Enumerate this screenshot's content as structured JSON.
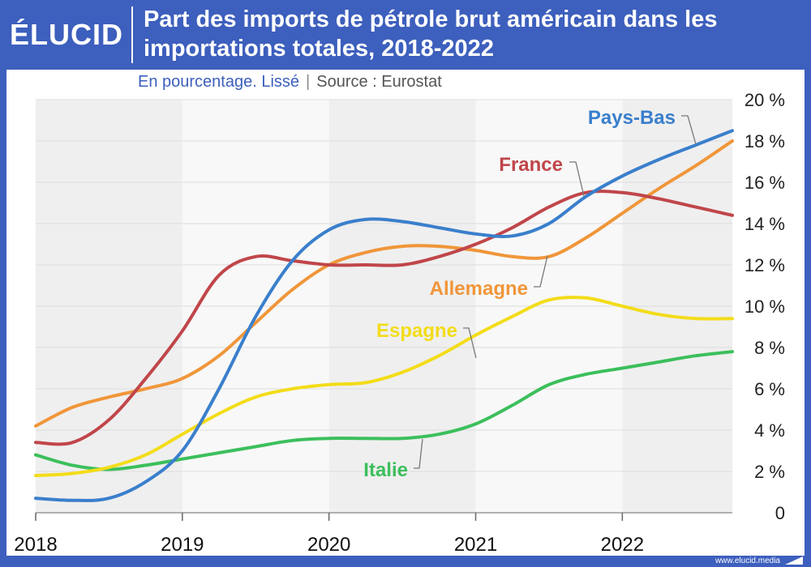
{
  "header": {
    "logo": "ÉLUCID",
    "title": "Part des imports de pétrole brut américain dans les importations totales, 2018-2022",
    "subtitle": "En pourcentage. Lissé",
    "separator": "|",
    "source": "Source : Eurostat"
  },
  "footer": {
    "url": "www.elucid.media"
  },
  "chart_data": {
    "type": "line",
    "title": "Part des imports de pétrole brut américain dans les importations totales, 2018-2022",
    "subtitle": "En pourcentage. Lissé",
    "xlabel": "",
    "ylabel": "",
    "xlim": [
      2018,
      2022.75
    ],
    "ylim": [
      0,
      20
    ],
    "x_ticks": [
      "2018",
      "2019",
      "2020",
      "2021",
      "2022"
    ],
    "y_ticks": [
      "0",
      "2 %",
      "4 %",
      "6 %",
      "8 %",
      "10 %",
      "12 %",
      "14 %",
      "16 %",
      "18 %",
      "20 %"
    ],
    "grid": true,
    "legend": "direct labels",
    "x": [
      2018,
      2018.25,
      2018.5,
      2018.75,
      2019,
      2019.25,
      2019.5,
      2019.75,
      2020,
      2020.25,
      2020.5,
      2020.75,
      2021,
      2021.25,
      2021.5,
      2021.75,
      2022,
      2022.25,
      2022.5,
      2022.75
    ],
    "series": [
      {
        "name": "Pays-Bas",
        "color": "#3a7fcc",
        "values": [
          0.7,
          0.6,
          0.7,
          1.5,
          3.0,
          6.0,
          9.5,
          12.2,
          13.7,
          14.2,
          14.1,
          13.8,
          13.5,
          13.4,
          14.0,
          15.3,
          16.3,
          17.1,
          17.8,
          18.5
        ]
      },
      {
        "name": "France",
        "color": "#c0464a",
        "values": [
          3.4,
          3.4,
          4.5,
          6.5,
          8.8,
          11.5,
          12.4,
          12.2,
          12.0,
          12.0,
          12.0,
          12.4,
          13.0,
          13.8,
          14.8,
          15.5,
          15.5,
          15.2,
          14.8,
          14.4
        ]
      },
      {
        "name": "Allemagne",
        "color": "#f0963a",
        "values": [
          4.2,
          5.1,
          5.6,
          6.0,
          6.5,
          7.6,
          9.2,
          10.8,
          12.0,
          12.6,
          12.9,
          12.9,
          12.7,
          12.4,
          12.4,
          13.3,
          14.5,
          15.7,
          16.8,
          18.0
        ]
      },
      {
        "name": "Espagne",
        "color": "#f3dc1a",
        "values": [
          1.8,
          1.9,
          2.2,
          2.8,
          3.8,
          4.8,
          5.6,
          6.0,
          6.2,
          6.3,
          6.8,
          7.6,
          8.6,
          9.5,
          10.3,
          10.4,
          10.0,
          9.6,
          9.4,
          9.4
        ]
      },
      {
        "name": "Italie",
        "color": "#3cbf5c",
        "values": [
          2.8,
          2.3,
          2.1,
          2.3,
          2.6,
          2.9,
          3.2,
          3.5,
          3.6,
          3.6,
          3.6,
          3.8,
          4.3,
          5.2,
          6.2,
          6.7,
          7.0,
          7.3,
          7.6,
          7.8
        ]
      }
    ],
    "labels": [
      "Pays-Bas",
      "France",
      "Allemagne",
      "Espagne",
      "Italie"
    ]
  }
}
